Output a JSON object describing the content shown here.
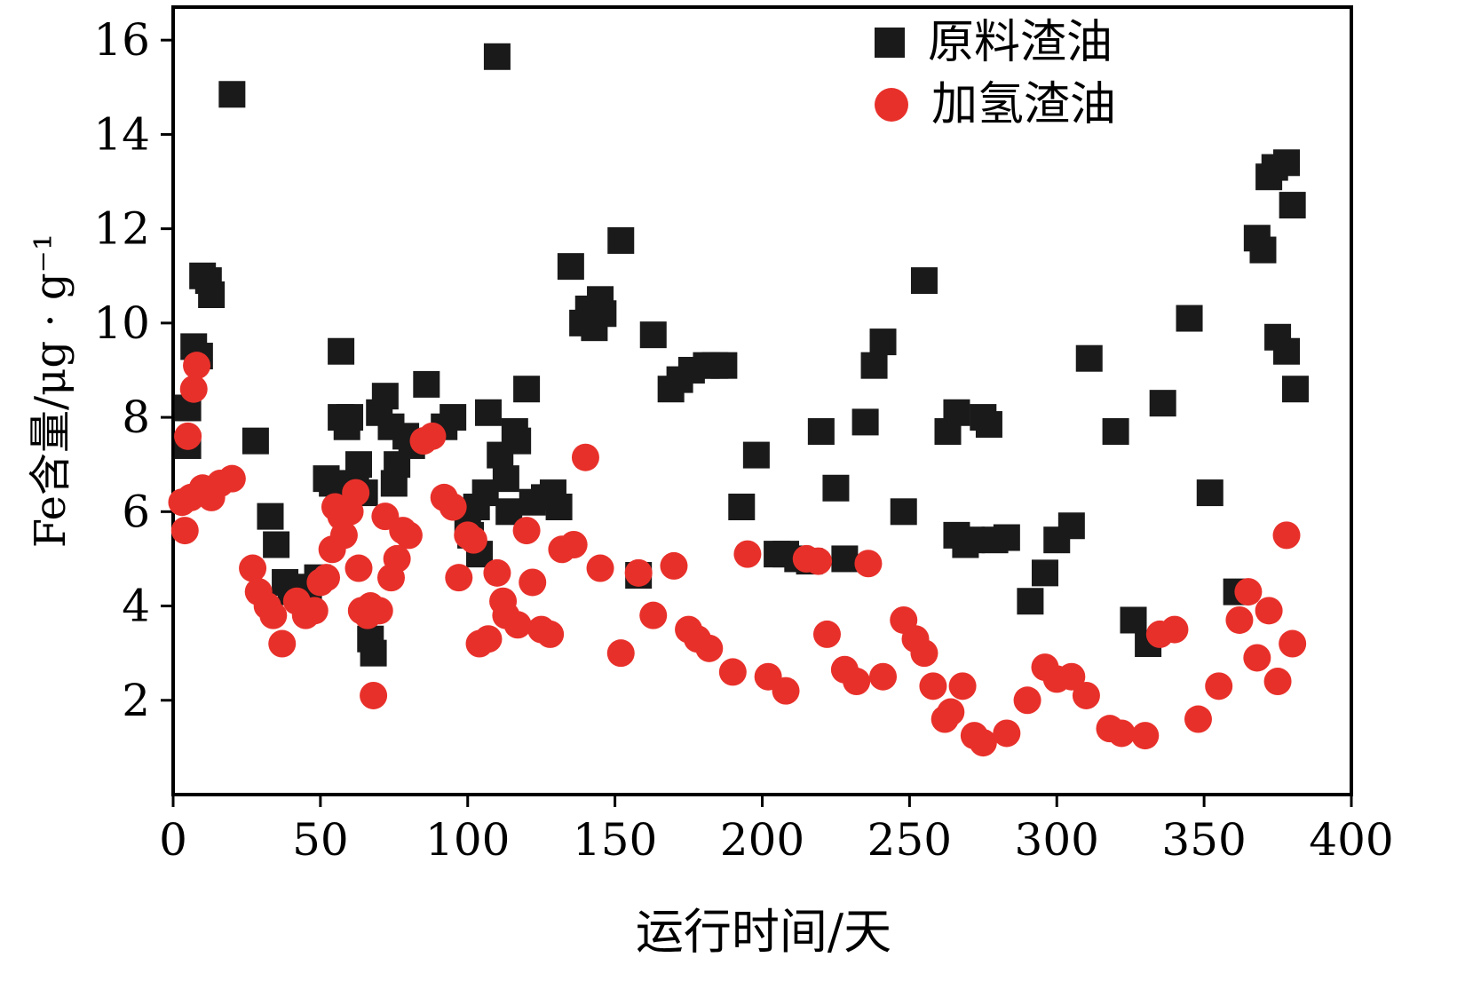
{
  "chart_data": {
    "type": "scatter",
    "title": "",
    "xlabel": "运行时间/天",
    "ylabel": "Fe含量/μg · g⁻¹",
    "xlim": [
      0,
      400
    ],
    "ylim": [
      0,
      16.7
    ],
    "xticks": [
      0,
      50,
      100,
      150,
      200,
      250,
      300,
      350,
      400
    ],
    "yticks": [
      2,
      4,
      6,
      8,
      10,
      12,
      14,
      16
    ],
    "grid": false,
    "axis_color": "#000000",
    "legend_position": "top-right-inside",
    "series": [
      {
        "name": "原料渣油",
        "marker": "square",
        "color": "#1a1a1a",
        "points": [
          [
            5,
            8.2
          ],
          [
            5,
            7.4
          ],
          [
            7,
            9.5
          ],
          [
            9,
            9.3
          ],
          [
            10,
            11.0
          ],
          [
            12,
            10.9
          ],
          [
            13,
            10.6
          ],
          [
            20,
            14.85
          ],
          [
            28,
            7.5
          ],
          [
            33,
            5.9
          ],
          [
            35,
            5.3
          ],
          [
            38,
            4.5
          ],
          [
            40,
            4.3
          ],
          [
            43,
            4.4
          ],
          [
            46,
            4.3
          ],
          [
            49,
            4.6
          ],
          [
            52,
            6.7
          ],
          [
            54,
            6.6
          ],
          [
            57,
            9.4
          ],
          [
            57,
            8.0
          ],
          [
            59,
            7.8
          ],
          [
            60,
            8.0
          ],
          [
            62,
            6.6
          ],
          [
            63,
            7.0
          ],
          [
            65,
            6.4
          ],
          [
            67,
            3.3
          ],
          [
            68,
            3.0
          ],
          [
            70,
            8.1
          ],
          [
            72,
            8.45
          ],
          [
            74,
            7.8
          ],
          [
            75,
            6.6
          ],
          [
            76,
            7.0
          ],
          [
            79,
            7.6
          ],
          [
            81,
            7.4
          ],
          [
            86,
            8.7
          ],
          [
            92,
            7.8
          ],
          [
            95,
            8.0
          ],
          [
            100,
            5.8
          ],
          [
            101,
            5.5
          ],
          [
            103,
            6.1
          ],
          [
            104,
            5.1
          ],
          [
            106,
            6.4
          ],
          [
            107,
            8.1
          ],
          [
            110,
            15.65
          ],
          [
            111,
            7.2
          ],
          [
            113,
            6.7
          ],
          [
            114,
            6.0
          ],
          [
            116,
            7.7
          ],
          [
            117,
            7.5
          ],
          [
            120,
            8.6
          ],
          [
            122,
            6.2
          ],
          [
            126,
            6.3
          ],
          [
            129,
            6.4
          ],
          [
            131,
            6.1
          ],
          [
            135,
            11.2
          ],
          [
            139,
            10.0
          ],
          [
            141,
            10.3
          ],
          [
            143,
            9.9
          ],
          [
            145,
            10.5
          ],
          [
            146,
            10.2
          ],
          [
            152,
            11.75
          ],
          [
            158,
            4.65
          ],
          [
            163,
            9.75
          ],
          [
            169,
            8.6
          ],
          [
            172,
            8.8
          ],
          [
            176,
            9.0
          ],
          [
            181,
            9.1
          ],
          [
            184,
            9.1
          ],
          [
            187,
            9.1
          ],
          [
            193,
            6.1
          ],
          [
            198,
            7.2
          ],
          [
            205,
            5.1
          ],
          [
            208,
            5.1
          ],
          [
            212,
            5.0
          ],
          [
            216,
            4.95
          ],
          [
            220,
            7.7
          ],
          [
            225,
            6.5
          ],
          [
            228,
            5.0
          ],
          [
            235,
            7.9
          ],
          [
            238,
            9.1
          ],
          [
            241,
            9.6
          ],
          [
            248,
            6.0
          ],
          [
            255,
            10.9
          ],
          [
            263,
            7.7
          ],
          [
            266,
            8.1
          ],
          [
            266,
            5.5
          ],
          [
            269,
            5.3
          ],
          [
            271,
            5.4
          ],
          [
            275,
            8.0
          ],
          [
            277,
            7.85
          ],
          [
            279,
            5.4
          ],
          [
            283,
            5.45
          ],
          [
            291,
            4.1
          ],
          [
            296,
            4.7
          ],
          [
            300,
            5.4
          ],
          [
            305,
            5.7
          ],
          [
            311,
            9.25
          ],
          [
            320,
            7.7
          ],
          [
            326,
            3.7
          ],
          [
            331,
            3.2
          ],
          [
            336,
            8.3
          ],
          [
            345,
            10.1
          ],
          [
            352,
            6.4
          ],
          [
            361,
            4.3
          ],
          [
            368,
            11.8
          ],
          [
            370,
            11.55
          ],
          [
            372,
            13.1
          ],
          [
            374,
            13.3
          ],
          [
            375,
            9.7
          ],
          [
            378,
            13.4
          ],
          [
            378,
            9.4
          ],
          [
            380,
            12.5
          ],
          [
            381,
            8.6
          ]
        ]
      },
      {
        "name": "加氢渣油",
        "marker": "circle",
        "color": "#e8302a",
        "points": [
          [
            3,
            6.2
          ],
          [
            4,
            5.6
          ],
          [
            5,
            7.6
          ],
          [
            6,
            6.3
          ],
          [
            7,
            8.6
          ],
          [
            8,
            9.1
          ],
          [
            10,
            6.5
          ],
          [
            13,
            6.3
          ],
          [
            16,
            6.6
          ],
          [
            20,
            6.7
          ],
          [
            27,
            4.8
          ],
          [
            29,
            4.3
          ],
          [
            32,
            4.0
          ],
          [
            34,
            3.8
          ],
          [
            37,
            3.2
          ],
          [
            42,
            4.1
          ],
          [
            45,
            3.8
          ],
          [
            48,
            3.9
          ],
          [
            50,
            4.5
          ],
          [
            52,
            4.6
          ],
          [
            54,
            5.2
          ],
          [
            55,
            6.1
          ],
          [
            57,
            5.9
          ],
          [
            58,
            5.5
          ],
          [
            60,
            6.0
          ],
          [
            62,
            6.4
          ],
          [
            63,
            4.8
          ],
          [
            64,
            3.9
          ],
          [
            66,
            3.8
          ],
          [
            67,
            4.0
          ],
          [
            68,
            2.1
          ],
          [
            70,
            3.9
          ],
          [
            72,
            5.9
          ],
          [
            74,
            4.6
          ],
          [
            76,
            5.0
          ],
          [
            78,
            5.6
          ],
          [
            80,
            5.5
          ],
          [
            85,
            7.5
          ],
          [
            88,
            7.6
          ],
          [
            92,
            6.3
          ],
          [
            95,
            6.1
          ],
          [
            97,
            4.6
          ],
          [
            100,
            5.5
          ],
          [
            102,
            5.4
          ],
          [
            104,
            3.2
          ],
          [
            107,
            3.3
          ],
          [
            110,
            4.7
          ],
          [
            112,
            4.1
          ],
          [
            113,
            3.8
          ],
          [
            117,
            3.6
          ],
          [
            120,
            5.6
          ],
          [
            122,
            4.5
          ],
          [
            125,
            3.5
          ],
          [
            128,
            3.4
          ],
          [
            132,
            5.2
          ],
          [
            136,
            5.3
          ],
          [
            140,
            7.15
          ],
          [
            145,
            4.8
          ],
          [
            152,
            3.0
          ],
          [
            158,
            4.7
          ],
          [
            163,
            3.8
          ],
          [
            170,
            4.85
          ],
          [
            175,
            3.5
          ],
          [
            178,
            3.3
          ],
          [
            182,
            3.1
          ],
          [
            190,
            2.6
          ],
          [
            195,
            5.1
          ],
          [
            202,
            2.5
          ],
          [
            208,
            2.2
          ],
          [
            215,
            5.0
          ],
          [
            219,
            4.95
          ],
          [
            222,
            3.4
          ],
          [
            228,
            2.65
          ],
          [
            232,
            2.4
          ],
          [
            236,
            4.9
          ],
          [
            241,
            2.5
          ],
          [
            248,
            3.7
          ],
          [
            252,
            3.3
          ],
          [
            255,
            3.0
          ],
          [
            258,
            2.3
          ],
          [
            262,
            1.6
          ],
          [
            264,
            1.75
          ],
          [
            268,
            2.3
          ],
          [
            272,
            1.25
          ],
          [
            275,
            1.1
          ],
          [
            283,
            1.3
          ],
          [
            290,
            2.0
          ],
          [
            296,
            2.7
          ],
          [
            300,
            2.45
          ],
          [
            305,
            2.5
          ],
          [
            310,
            2.1
          ],
          [
            318,
            1.4
          ],
          [
            322,
            1.3
          ],
          [
            330,
            1.25
          ],
          [
            335,
            3.4
          ],
          [
            340,
            3.5
          ],
          [
            348,
            1.6
          ],
          [
            355,
            2.3
          ],
          [
            362,
            3.7
          ],
          [
            365,
            4.3
          ],
          [
            368,
            2.9
          ],
          [
            372,
            3.9
          ],
          [
            375,
            2.4
          ],
          [
            378,
            5.5
          ],
          [
            380,
            3.2
          ]
        ]
      }
    ]
  }
}
